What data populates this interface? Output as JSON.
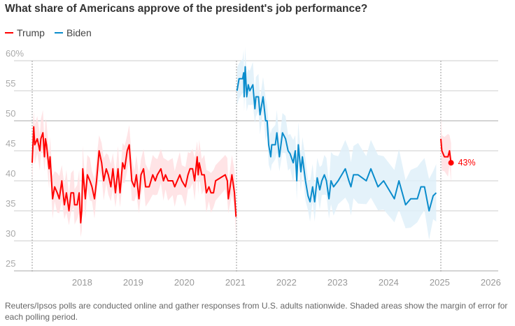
{
  "chart_data": {
    "type": "line",
    "title": "What share of Americans approve of the president's job performance?",
    "ylim": [
      25,
      60
    ],
    "xlim": [
      2016.95,
      2026.2
    ],
    "y_ticks": [
      "25",
      "30",
      "35",
      "40",
      "45",
      "50",
      "55",
      "60%"
    ],
    "y_tick_values": [
      25,
      30,
      35,
      40,
      45,
      50,
      55,
      60
    ],
    "x_ticks": [
      "2018",
      "2019",
      "2020",
      "2021",
      "2022",
      "2023",
      "2024",
      "2025",
      "2026"
    ],
    "x_tick_values": [
      2018,
      2019,
      2020,
      2021,
      2022,
      2023,
      2024,
      2025,
      2026
    ],
    "grid": true,
    "legend_position": "top-left",
    "term_markers": [
      2017.05,
      2021.05,
      2025.05
    ],
    "legend": [
      {
        "name": "Trump",
        "color": "#ff0000"
      },
      {
        "name": "Biden",
        "color": "#0a8ccc"
      }
    ],
    "series": [
      {
        "name": "Trump",
        "color": "#ff0000",
        "band_color": "#ffdfe2",
        "moe": [
          [
            2017.05,
            3
          ]
        ],
        "points": [
          [
            2017.05,
            43
          ],
          [
            2017.08,
            49
          ],
          [
            2017.1,
            46
          ],
          [
            2017.15,
            47
          ],
          [
            2017.2,
            45
          ],
          [
            2017.22,
            47
          ],
          [
            2017.26,
            48
          ],
          [
            2017.29,
            44
          ],
          [
            2017.31,
            47
          ],
          [
            2017.33,
            46
          ],
          [
            2017.38,
            42
          ],
          [
            2017.4,
            44
          ],
          [
            2017.45,
            37
          ],
          [
            2017.49,
            39
          ],
          [
            2017.54,
            38
          ],
          [
            2017.58,
            37
          ],
          [
            2017.63,
            40
          ],
          [
            2017.68,
            36
          ],
          [
            2017.72,
            38
          ],
          [
            2017.77,
            35
          ],
          [
            2017.81,
            38
          ],
          [
            2017.86,
            38
          ],
          [
            2017.88,
            36
          ],
          [
            2017.93,
            36
          ],
          [
            2017.97,
            38
          ],
          [
            2018.0,
            33
          ],
          [
            2018.02,
            35
          ],
          [
            2018.04,
            42
          ],
          [
            2018.09,
            37
          ],
          [
            2018.13,
            41
          ],
          [
            2018.18,
            40
          ],
          [
            2018.22,
            39
          ],
          [
            2018.27,
            37
          ],
          [
            2018.31,
            40
          ],
          [
            2018.36,
            45
          ],
          [
            2018.41,
            43
          ],
          [
            2018.45,
            40
          ],
          [
            2018.5,
            42
          ],
          [
            2018.54,
            41
          ],
          [
            2018.59,
            39
          ],
          [
            2018.63,
            42
          ],
          [
            2018.68,
            38
          ],
          [
            2018.73,
            42
          ],
          [
            2018.77,
            38
          ],
          [
            2018.82,
            43
          ],
          [
            2018.86,
            42
          ],
          [
            2018.91,
            45
          ],
          [
            2018.95,
            46
          ],
          [
            2019.0,
            40
          ],
          [
            2019.05,
            39
          ],
          [
            2019.09,
            41
          ],
          [
            2019.14,
            37
          ],
          [
            2019.18,
            41
          ],
          [
            2019.23,
            42
          ],
          [
            2019.27,
            39
          ],
          [
            2019.34,
            39
          ],
          [
            2019.41,
            41
          ],
          [
            2019.46,
            40
          ],
          [
            2019.5,
            41
          ],
          [
            2019.57,
            42
          ],
          [
            2019.62,
            40
          ],
          [
            2019.66,
            41
          ],
          [
            2019.71,
            40
          ],
          [
            2019.8,
            40
          ],
          [
            2019.84,
            39
          ],
          [
            2019.89,
            40
          ],
          [
            2019.94,
            41
          ],
          [
            2019.98,
            40
          ],
          [
            2020.05,
            39
          ],
          [
            2020.1,
            41
          ],
          [
            2020.14,
            42
          ],
          [
            2020.19,
            42
          ],
          [
            2020.23,
            40
          ],
          [
            2020.28,
            44
          ],
          [
            2020.3,
            41
          ],
          [
            2020.32,
            43
          ],
          [
            2020.37,
            41
          ],
          [
            2020.42,
            41
          ],
          [
            2020.46,
            38
          ],
          [
            2020.51,
            39
          ],
          [
            2020.55,
            38
          ],
          [
            2020.6,
            38
          ],
          [
            2020.64,
            40
          ],
          [
            2020.83,
            41
          ],
          [
            2020.87,
            40
          ],
          [
            2020.89,
            37
          ],
          [
            2020.96,
            41
          ],
          [
            2021.01,
            38
          ],
          [
            2021.04,
            34
          ]
        ]
      },
      {
        "name": "Biden",
        "color": "#0a8ccc",
        "band_color": "#dff0f9",
        "moe": [
          [
            2021.05,
            3
          ],
          [
            2022.9,
            4.5
          ]
        ],
        "points": [
          [
            2021.06,
            55
          ],
          [
            2021.1,
            57
          ],
          [
            2021.17,
            57
          ],
          [
            2021.19,
            58
          ],
          [
            2021.2,
            54
          ],
          [
            2021.22,
            59
          ],
          [
            2021.25,
            54
          ],
          [
            2021.28,
            56
          ],
          [
            2021.31,
            55
          ],
          [
            2021.37,
            56
          ],
          [
            2021.41,
            52
          ],
          [
            2021.43,
            54
          ],
          [
            2021.48,
            54
          ],
          [
            2021.51,
            51
          ],
          [
            2021.57,
            54
          ],
          [
            2021.62,
            50
          ],
          [
            2021.65,
            50
          ],
          [
            2021.68,
            46
          ],
          [
            2021.72,
            44
          ],
          [
            2021.74,
            46
          ],
          [
            2021.81,
            46
          ],
          [
            2021.84,
            48
          ],
          [
            2021.89,
            44
          ],
          [
            2021.95,
            48
          ],
          [
            2022.01,
            47
          ],
          [
            2022.06,
            45
          ],
          [
            2022.1,
            44.5
          ],
          [
            2022.16,
            43
          ],
          [
            2022.2,
            45
          ],
          [
            2022.23,
            40
          ],
          [
            2022.26,
            46
          ],
          [
            2022.31,
            41.5
          ],
          [
            2022.34,
            44
          ],
          [
            2022.4,
            40
          ],
          [
            2022.45,
            37.5
          ],
          [
            2022.49,
            36.5
          ],
          [
            2022.54,
            39
          ],
          [
            2022.58,
            36.5
          ],
          [
            2022.63,
            40.5
          ],
          [
            2022.68,
            38.5
          ],
          [
            2022.72,
            40
          ],
          [
            2022.77,
            41
          ],
          [
            2022.81,
            40
          ],
          [
            2022.86,
            37
          ],
          [
            2022.9,
            40
          ],
          [
            2022.95,
            39
          ],
          [
            2023.04,
            40
          ],
          [
            2023.18,
            42
          ],
          [
            2023.25,
            40
          ],
          [
            2023.29,
            39
          ],
          [
            2023.34,
            41
          ],
          [
            2023.43,
            41
          ],
          [
            2023.59,
            40
          ],
          [
            2023.68,
            42
          ],
          [
            2023.82,
            39
          ],
          [
            2023.93,
            40
          ],
          [
            2024.14,
            37
          ],
          [
            2024.23,
            40
          ],
          [
            2024.36,
            36
          ],
          [
            2024.46,
            37
          ],
          [
            2024.59,
            37
          ],
          [
            2024.66,
            39
          ],
          [
            2024.73,
            39
          ],
          [
            2024.82,
            35
          ],
          [
            2024.9,
            37.5
          ],
          [
            2024.96,
            38
          ]
        ]
      },
      {
        "name": "Trump",
        "color": "#ff0000",
        "band_color": "#ffdfe2",
        "moe": [
          [
            2025.05,
            3
          ]
        ],
        "points": [
          [
            2025.05,
            47
          ],
          [
            2025.07,
            45
          ],
          [
            2025.12,
            44
          ],
          [
            2025.19,
            44
          ],
          [
            2025.22,
            45
          ],
          [
            2025.25,
            43
          ]
        ]
      }
    ],
    "annotations": [
      {
        "x": 2025.25,
        "y": 43,
        "text": "43%"
      }
    ]
  },
  "footnote": "Reuters/Ipsos polls are conducted online and gather responses from U.S. adults nationwide. Shaded areas show the margin of error for each polling period."
}
